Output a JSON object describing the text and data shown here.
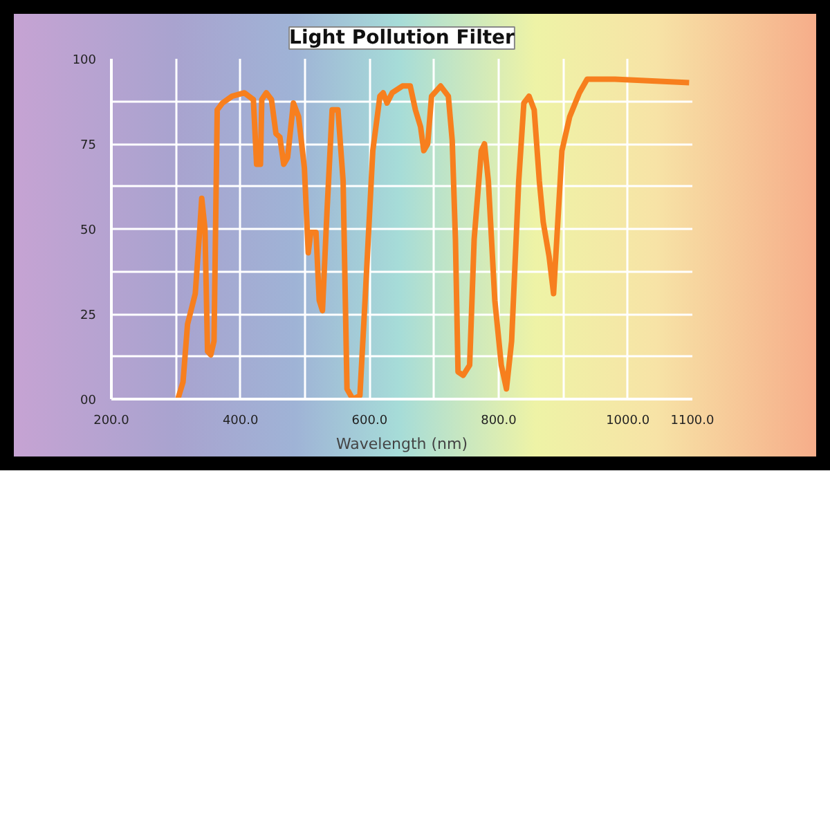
{
  "chart_data": {
    "type": "line",
    "title": "Light Pollution Filter",
    "xlabel": "Wavelength (nm)",
    "xlim": [
      200,
      1100
    ],
    "ylim": [
      0,
      100
    ],
    "xticks": [
      {
        "value": 200,
        "label": "200.0"
      },
      {
        "value": 300,
        "label": null
      },
      {
        "value": 400,
        "label": "400.0"
      },
      {
        "value": 500,
        "label": null
      },
      {
        "value": 600,
        "label": "600.0"
      },
      {
        "value": 700,
        "label": null
      },
      {
        "value": 800,
        "label": "800.0"
      },
      {
        "value": 900,
        "label": null
      },
      {
        "value": 1000,
        "label": "1000.0"
      },
      {
        "value": 1100,
        "label": "1100.0"
      }
    ],
    "yticks": [
      {
        "value": 0,
        "label": "00"
      },
      {
        "value": 12.5,
        "label": null
      },
      25,
      {
        "value": 37.5,
        "label": null
      },
      50,
      {
        "value": 62.5,
        "label": null
      },
      75,
      {
        "value": 87.5,
        "label": null
      },
      100
    ],
    "grid": true,
    "marker": "none",
    "line_style": "solid",
    "series": [
      {
        "color": "#f77f1e",
        "x": [
          303,
          311,
          318,
          330,
          337,
          340,
          345,
          349,
          354,
          359,
          364,
          372,
          387,
          406,
          420,
          425,
          431,
          433,
          440,
          448,
          455,
          461,
          467,
          473,
          482,
          490,
          499,
          505,
          509,
          517,
          522,
          527,
          534,
          542,
          551,
          559,
          565,
          574,
          585,
          593,
          605,
          616,
          621,
          627,
          635,
          651,
          663,
          671,
          679,
          684,
          690,
          696,
          710,
          722,
          728,
          733,
          737,
          745,
          755,
          762,
          773,
          778,
          784,
          794,
          804,
          812,
          820,
          831,
          839,
          847,
          855,
          863,
          869,
          878,
          885,
          890,
          898,
          910,
          925,
          937,
          980,
          1095
        ],
        "values": [
          0,
          5,
          22,
          31,
          50,
          59,
          50,
          14,
          13,
          17,
          85,
          87,
          89,
          90,
          88,
          69,
          69,
          88,
          90,
          88,
          78,
          77,
          69,
          71,
          87,
          83,
          68,
          43,
          49,
          49,
          29,
          26,
          55,
          85,
          85,
          64,
          3,
          0,
          1,
          29,
          73,
          89,
          90,
          87,
          90,
          92,
          92,
          85,
          80,
          73,
          75,
          89,
          92,
          89,
          76,
          47,
          8,
          7,
          10,
          47,
          73,
          75,
          64,
          29,
          10,
          3,
          17,
          64,
          87,
          89,
          85,
          64,
          52,
          42,
          31,
          47,
          73,
          83,
          90,
          94,
          94,
          93
        ]
      }
    ]
  }
}
